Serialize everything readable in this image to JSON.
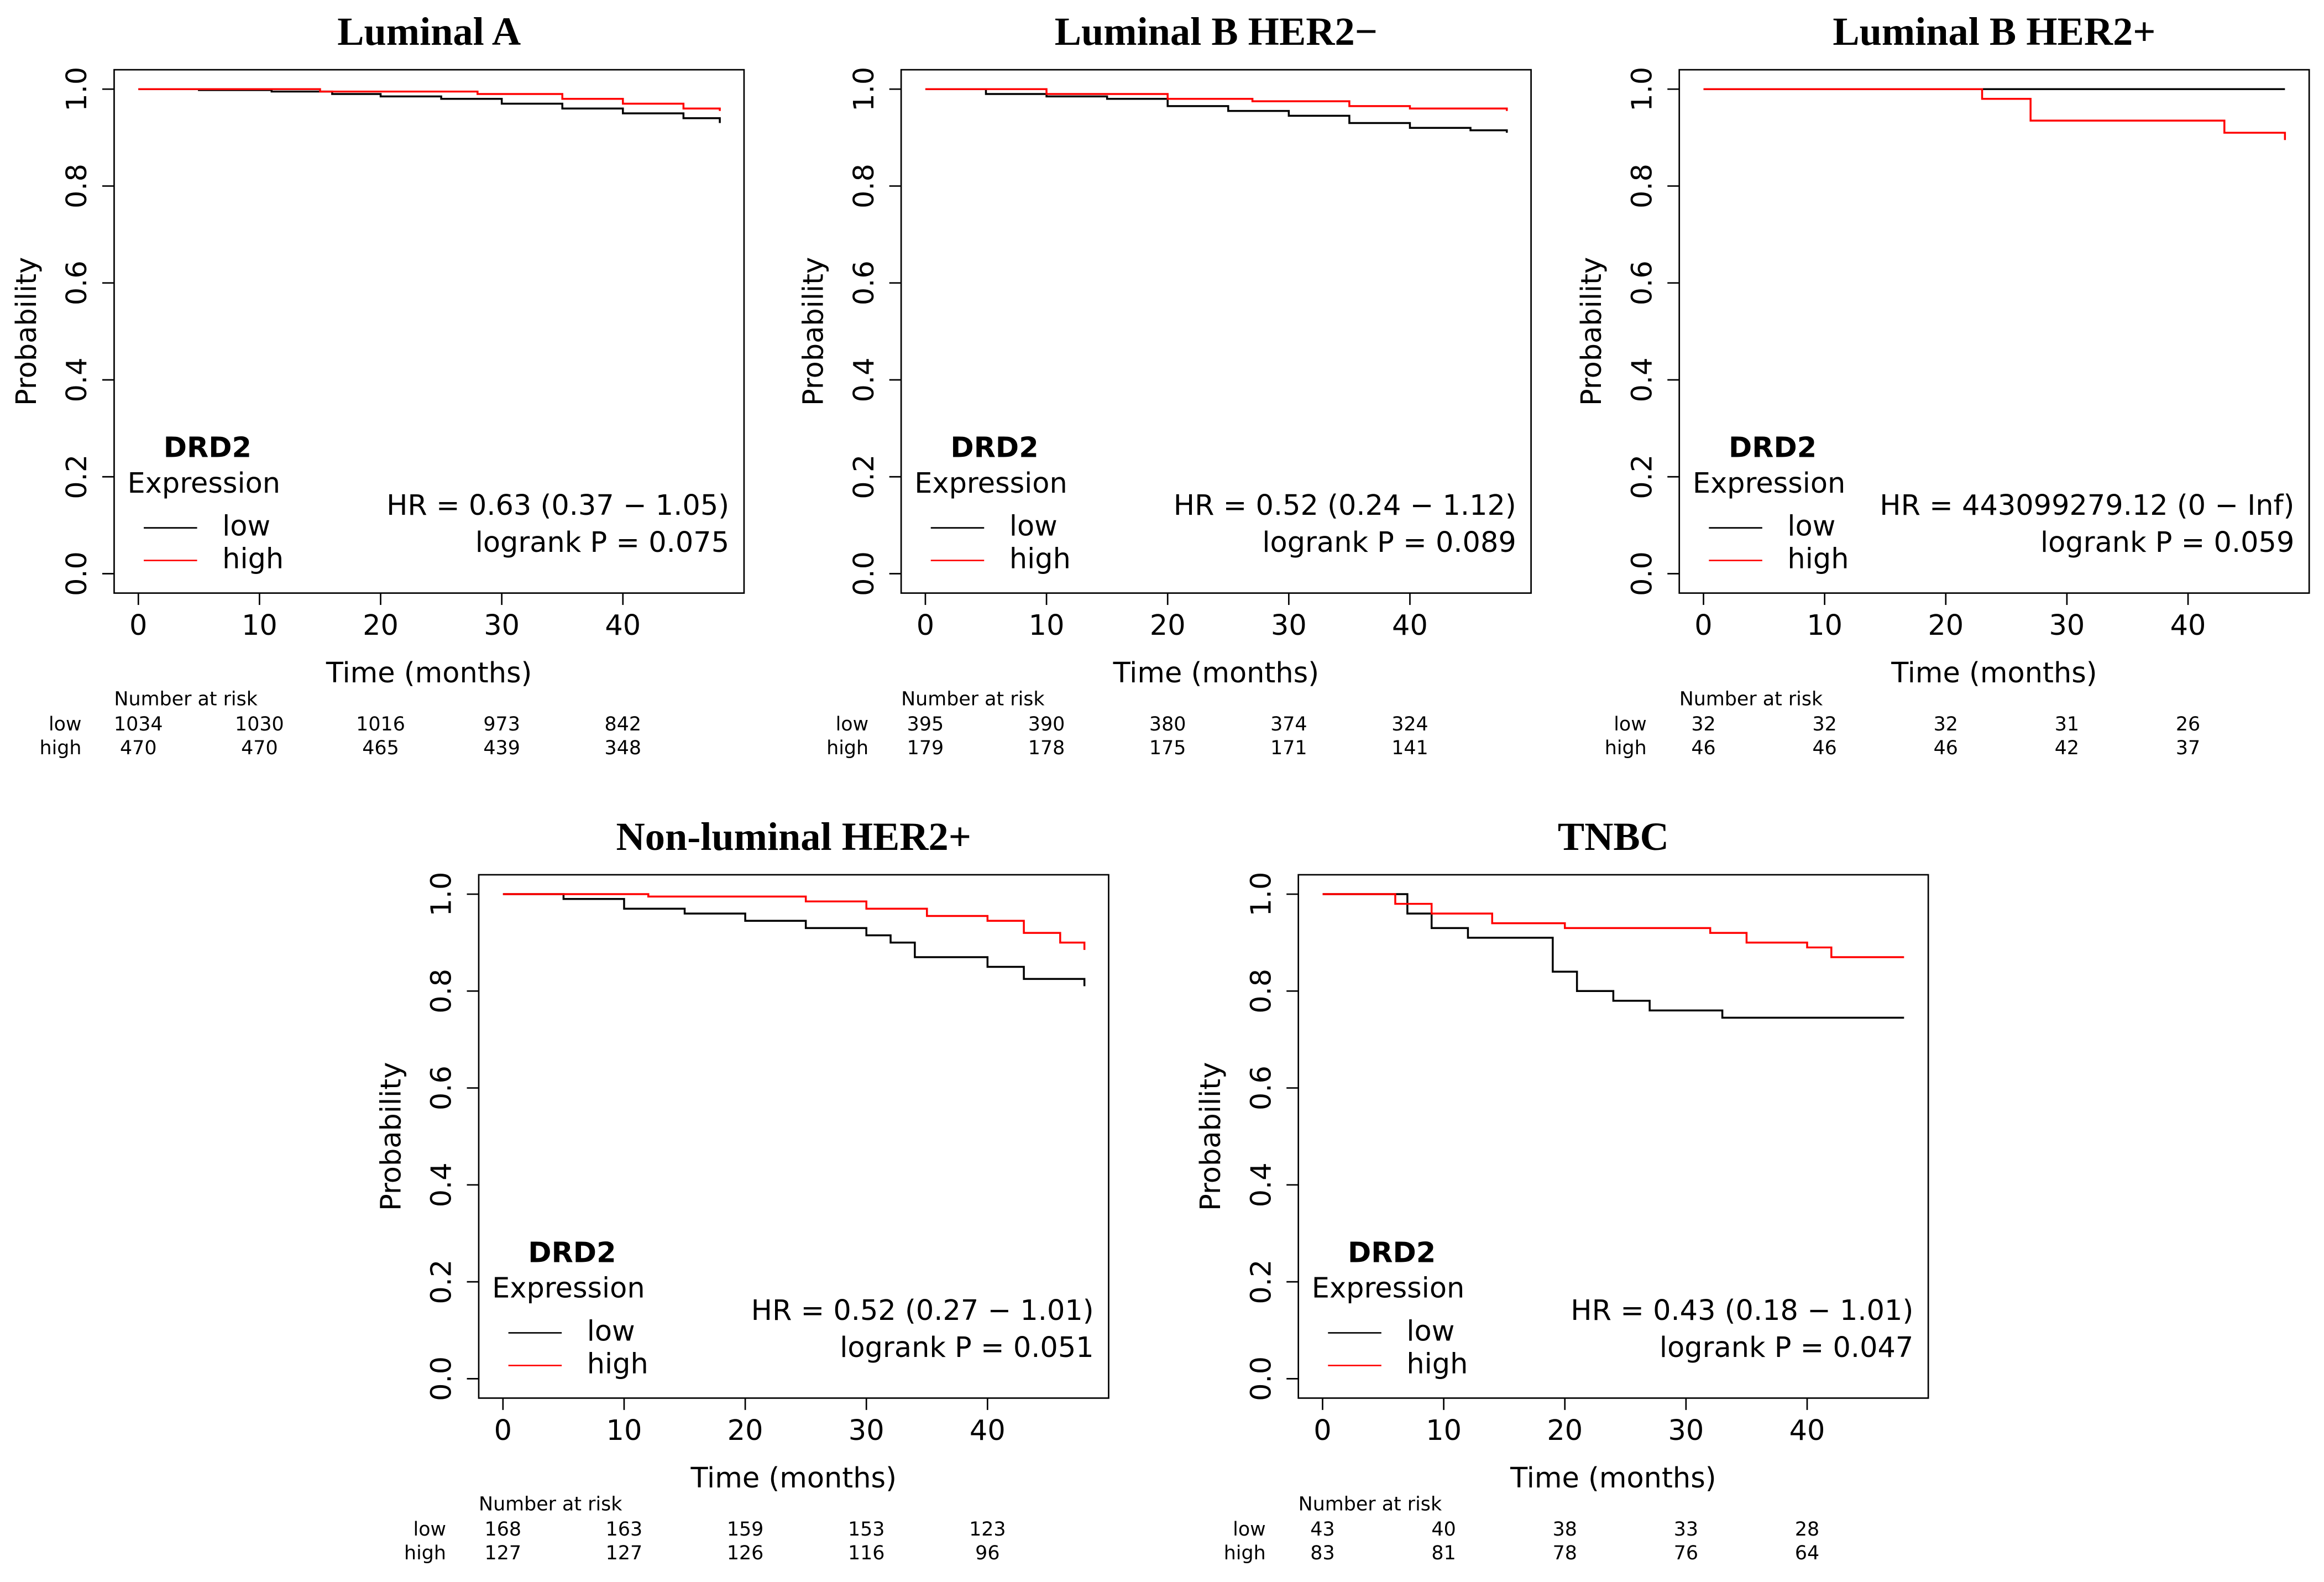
{
  "chart_data": [
    {
      "type": "line",
      "title": "Luminal A",
      "xlabel": "Time (months)",
      "ylabel": "Probability",
      "xlim": [
        -2,
        50
      ],
      "ylim": [
        -0.04,
        1.04
      ],
      "xticks": [
        0,
        10,
        20,
        30,
        40
      ],
      "yticks": [
        {
          "value": 0,
          "label": "0.0"
        },
        0.2,
        0.4,
        0.6,
        0.8,
        {
          "value": 1,
          "label": "1.0"
        }
      ],
      "legend_title": "DRD2",
      "legend_subtitle": "Expression",
      "series": [
        {
          "name": "low",
          "color": "#000000",
          "x": [
            0,
            5,
            11,
            16,
            20,
            25,
            30,
            35,
            40,
            45,
            48
          ],
          "values": [
            1,
            0.998,
            0.995,
            0.99,
            0.985,
            0.98,
            0.97,
            0.96,
            0.95,
            0.94,
            0.93
          ]
        },
        {
          "name": "high",
          "color": "#ff0000",
          "x": [
            0,
            15,
            28,
            35,
            40,
            45,
            48
          ],
          "values": [
            1,
            0.995,
            0.99,
            0.98,
            0.97,
            0.96,
            0.955
          ]
        }
      ],
      "annotations": [
        "HR = 0.63 (0.37 − 1.05)",
        "logrank P = 0.075"
      ],
      "risk_table": {
        "title": "Number at risk",
        "rows": [
          [
            1034,
            1030,
            1016,
            973,
            842
          ],
          [
            470,
            470,
            465,
            439,
            348
          ]
        ]
      }
    },
    {
      "type": "line",
      "title": "Luminal B HER2−",
      "xlabel": "Time (months)",
      "ylabel": "Probability",
      "xlim": [
        -2,
        50
      ],
      "ylim": [
        -0.04,
        1.04
      ],
      "xticks": [
        0,
        10,
        20,
        30,
        40
      ],
      "yticks": [
        {
          "value": 0,
          "label": "0.0"
        },
        0.2,
        0.4,
        0.6,
        0.8,
        {
          "value": 1,
          "label": "1.0"
        }
      ],
      "legend_title": "DRD2",
      "legend_subtitle": "Expression",
      "series": [
        {
          "name": "low",
          "color": "#000000",
          "x": [
            0,
            5,
            10,
            15,
            20,
            25,
            30,
            35,
            40,
            45,
            48
          ],
          "values": [
            1,
            0.99,
            0.985,
            0.98,
            0.965,
            0.955,
            0.945,
            0.93,
            0.92,
            0.915,
            0.91
          ]
        },
        {
          "name": "high",
          "color": "#ff0000",
          "x": [
            0,
            10,
            20,
            27,
            35,
            40,
            48
          ],
          "values": [
            1,
            0.99,
            0.98,
            0.975,
            0.965,
            0.96,
            0.955
          ]
        }
      ],
      "annotations": [
        "HR = 0.52 (0.24 − 1.12)",
        "logrank P = 0.089"
      ],
      "risk_table": {
        "title": "Number at risk",
        "rows": [
          [
            395,
            390,
            380,
            374,
            324
          ],
          [
            179,
            178,
            175,
            171,
            141
          ]
        ]
      }
    },
    {
      "type": "line",
      "title": "Luminal B HER2+",
      "xlabel": "Time (months)",
      "ylabel": "Probability",
      "xlim": [
        -2,
        50
      ],
      "ylim": [
        -0.04,
        1.04
      ],
      "xticks": [
        0,
        10,
        20,
        30,
        40
      ],
      "yticks": [
        {
          "value": 0,
          "label": "0.0"
        },
        0.2,
        0.4,
        0.6,
        0.8,
        {
          "value": 1,
          "label": "1.0"
        }
      ],
      "legend_title": "DRD2",
      "legend_subtitle": "Expression",
      "series": [
        {
          "name": "low",
          "color": "#000000",
          "x": [
            0,
            48
          ],
          "values": [
            1,
            1
          ]
        },
        {
          "name": "high",
          "color": "#ff0000",
          "x": [
            0,
            23,
            27,
            43,
            48
          ],
          "values": [
            1,
            0.98,
            0.935,
            0.91,
            0.895
          ]
        }
      ],
      "annotations": [
        "HR = 443099279.12 (0 − Inf)",
        "logrank P = 0.059"
      ],
      "risk_table": {
        "title": "Number at risk",
        "rows": [
          [
            32,
            32,
            32,
            31,
            26
          ],
          [
            46,
            46,
            46,
            42,
            37
          ]
        ]
      }
    },
    {
      "type": "line",
      "title": "Non-luminal HER2+",
      "xlabel": "Time (months)",
      "ylabel": "Probability",
      "xlim": [
        -2,
        50
      ],
      "ylim": [
        -0.04,
        1.04
      ],
      "xticks": [
        0,
        10,
        20,
        30,
        40
      ],
      "yticks": [
        {
          "value": 0,
          "label": "0.0"
        },
        0.2,
        0.4,
        0.6,
        0.8,
        {
          "value": 1,
          "label": "1.0"
        }
      ],
      "legend_title": "DRD2",
      "legend_subtitle": "Expression",
      "series": [
        {
          "name": "low",
          "color": "#000000",
          "x": [
            0,
            5,
            10,
            15,
            20,
            25,
            30,
            32,
            34,
            40,
            43,
            48
          ],
          "values": [
            1,
            0.99,
            0.97,
            0.96,
            0.945,
            0.93,
            0.915,
            0.9,
            0.87,
            0.85,
            0.825,
            0.81
          ]
        },
        {
          "name": "high",
          "color": "#ff0000",
          "x": [
            0,
            12,
            25,
            30,
            35,
            40,
            43,
            46,
            48
          ],
          "values": [
            1,
            0.995,
            0.985,
            0.97,
            0.955,
            0.945,
            0.92,
            0.9,
            0.885
          ]
        }
      ],
      "annotations": [
        "HR = 0.52 (0.27 − 1.01)",
        "logrank P = 0.051"
      ],
      "risk_table": {
        "title": "Number at risk",
        "rows": [
          [
            168,
            163,
            159,
            153,
            123
          ],
          [
            127,
            127,
            126,
            116,
            96
          ]
        ]
      }
    },
    {
      "type": "line",
      "title": "TNBC",
      "xlabel": "Time (months)",
      "ylabel": "Probability",
      "xlim": [
        -2,
        50
      ],
      "ylim": [
        -0.04,
        1.04
      ],
      "xticks": [
        0,
        10,
        20,
        30,
        40
      ],
      "yticks": [
        {
          "value": 0,
          "label": "0.0"
        },
        0.2,
        0.4,
        0.6,
        0.8,
        {
          "value": 1,
          "label": "1.0"
        }
      ],
      "legend_title": "DRD2",
      "legend_subtitle": "Expression",
      "series": [
        {
          "name": "low",
          "color": "#000000",
          "x": [
            0,
            7,
            9,
            12,
            19,
            21,
            24,
            27,
            33,
            48
          ],
          "values": [
            1,
            0.96,
            0.93,
            0.91,
            0.84,
            0.8,
            0.78,
            0.76,
            0.745,
            0.745
          ]
        },
        {
          "name": "high",
          "color": "#ff0000",
          "x": [
            0,
            6,
            9,
            14,
            20,
            32,
            35,
            40,
            42,
            48
          ],
          "values": [
            1,
            0.98,
            0.96,
            0.94,
            0.93,
            0.92,
            0.9,
            0.89,
            0.87,
            0.87
          ]
        }
      ],
      "annotations": [
        "HR = 0.43 (0.18 − 1.01)",
        "logrank P = 0.047"
      ],
      "risk_table": {
        "title": "Number at risk",
        "rows": [
          [
            43,
            40,
            38,
            33,
            28
          ],
          [
            83,
            81,
            78,
            76,
            64
          ]
        ]
      }
    }
  ]
}
